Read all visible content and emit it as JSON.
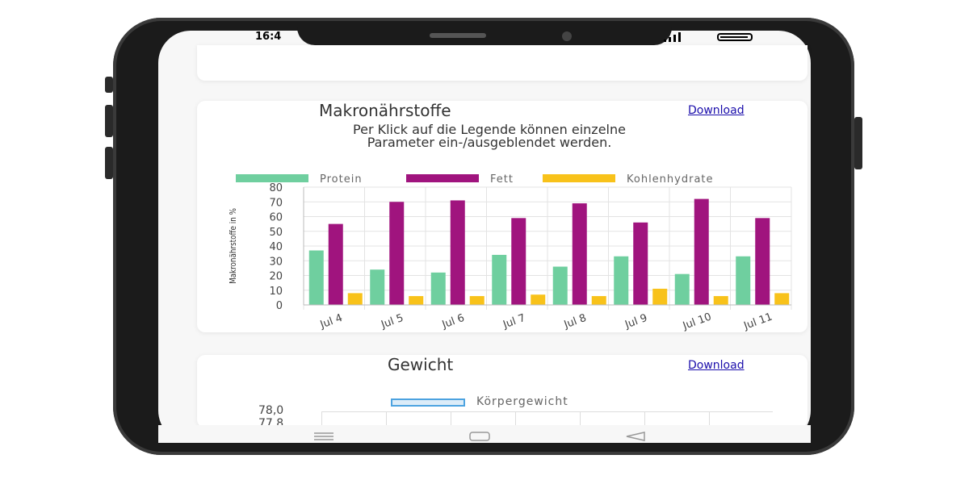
{
  "status": {
    "time": "16:4"
  },
  "macro": {
    "title": "Makronährstoffe",
    "download": "Download",
    "subtitle_line1": "Per Klick auf die Legende können einzelne",
    "subtitle_line2": "Parameter ein-/ausgeblendet werden."
  },
  "weight": {
    "title": "Gewicht",
    "download": "Download",
    "legend": "Körpergewicht",
    "y_ticks": [
      "78,0",
      "77,8"
    ]
  },
  "colors": {
    "protein": "#6fcf9f",
    "fett": "#a0147e",
    "kohlenhydrate": "#f8c21a"
  },
  "chart_data": {
    "type": "bar",
    "categories": [
      "Jul 4",
      "Jul 5",
      "Jul 6",
      "Jul 7",
      "Jul 8",
      "Jul 9",
      "Jul 10",
      "Jul 11"
    ],
    "series": [
      {
        "name": "Protein",
        "values": [
          37,
          24,
          22,
          34,
          26,
          33,
          21,
          33
        ]
      },
      {
        "name": "Fett",
        "values": [
          55,
          70,
          71,
          59,
          69,
          56,
          72,
          59
        ]
      },
      {
        "name": "Kohlenhydrate",
        "values": [
          8,
          6,
          6,
          7,
          6,
          11,
          6,
          8
        ]
      }
    ],
    "ylabel": "Makronährstoffe in %",
    "ylim": [
      0,
      80
    ],
    "yticks": [
      0,
      10,
      20,
      30,
      40,
      50,
      60,
      70,
      80
    ],
    "grid": true,
    "legend_position": "top"
  }
}
